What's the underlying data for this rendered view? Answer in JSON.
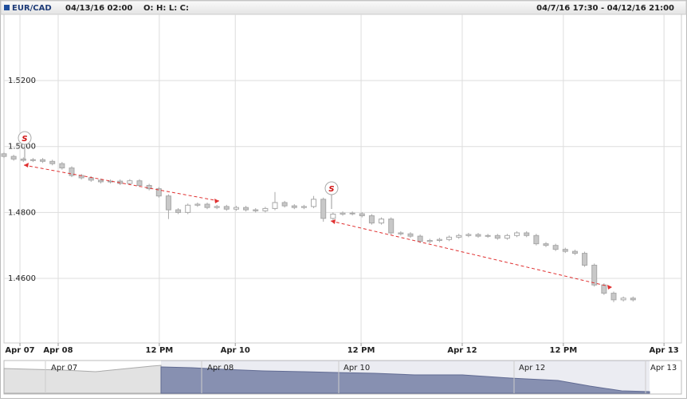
{
  "header": {
    "symbol": "EUR/CAD",
    "time": "04/13/16 02:00",
    "ohlc": "O: H: L: C:",
    "range": "04/7/16 17:30 - 04/12/16 21:00"
  },
  "chart_data": {
    "type": "candlestick",
    "x": [
      0,
      2,
      4,
      6,
      8,
      10,
      12,
      14,
      16,
      18,
      20,
      22,
      24,
      26,
      28,
      30,
      32,
      34,
      36,
      38,
      40,
      42,
      44,
      46,
      48,
      50,
      52,
      54,
      56,
      58,
      60,
      62,
      64,
      66,
      68,
      70,
      72,
      74,
      76,
      78,
      80,
      82,
      84,
      86,
      88,
      90,
      92,
      94,
      96,
      98,
      100,
      102,
      104,
      106,
      108,
      110,
      112,
      114,
      116,
      118,
      120,
      122,
      124,
      126,
      128,
      130
    ],
    "open": [
      1.4978,
      1.497,
      1.4962,
      1.4958,
      1.496,
      1.4955,
      1.4948,
      1.4935,
      1.4912,
      1.4905,
      1.4898,
      1.4893,
      1.4895,
      1.4888,
      1.4896,
      1.4882,
      1.4872,
      1.485,
      1.4808,
      1.48,
      1.4822,
      1.4825,
      1.4815,
      1.4818,
      1.481,
      1.4815,
      1.4808,
      1.4805,
      1.4812,
      1.483,
      1.482,
      1.4815,
      1.4818,
      1.484,
      1.4782,
      1.4795,
      1.4798,
      1.4796,
      1.479,
      1.4768,
      1.478,
      1.4738,
      1.4735,
      1.4728,
      1.4712,
      1.4715,
      1.4718,
      1.4725,
      1.473,
      1.4733,
      1.4728,
      1.473,
      1.4722,
      1.473,
      1.4738,
      1.473,
      1.4705,
      1.47,
      1.4688,
      1.4682,
      1.4676,
      1.464,
      1.458,
      1.4555,
      1.4535,
      1.454
    ],
    "high": [
      1.4983,
      1.4975,
      1.4967,
      1.4965,
      1.4965,
      1.496,
      1.4953,
      1.494,
      1.4917,
      1.491,
      1.4903,
      1.49,
      1.49,
      1.4901,
      1.4901,
      1.4887,
      1.4877,
      1.4855,
      1.4813,
      1.4827,
      1.483,
      1.483,
      1.4823,
      1.4823,
      1.482,
      1.482,
      1.4813,
      1.4817,
      1.4862,
      1.4835,
      1.4825,
      1.4823,
      1.485,
      1.4845,
      1.48,
      1.4803,
      1.4803,
      1.4801,
      1.4795,
      1.4785,
      1.4785,
      1.4743,
      1.474,
      1.4733,
      1.472,
      1.4723,
      1.473,
      1.4735,
      1.4738,
      1.4738,
      1.4735,
      1.4735,
      1.4735,
      1.4743,
      1.4743,
      1.4735,
      1.471,
      1.4705,
      1.4693,
      1.4687,
      1.4681,
      1.4645,
      1.4585,
      1.456,
      1.4545,
      1.4545
    ],
    "low": [
      1.4965,
      1.4957,
      1.4953,
      1.4953,
      1.495,
      1.4943,
      1.493,
      1.4907,
      1.49,
      1.4893,
      1.4888,
      1.4888,
      1.4883,
      1.4883,
      1.4877,
      1.4867,
      1.4845,
      1.478,
      1.4795,
      1.4795,
      1.4817,
      1.481,
      1.481,
      1.4805,
      1.4805,
      1.4803,
      1.48,
      1.48,
      1.4807,
      1.4815,
      1.481,
      1.481,
      1.4813,
      1.4772,
      1.4777,
      1.479,
      1.4791,
      1.4785,
      1.4763,
      1.4763,
      1.4733,
      1.473,
      1.4723,
      1.4707,
      1.4707,
      1.471,
      1.4713,
      1.472,
      1.4725,
      1.4723,
      1.4723,
      1.4717,
      1.4717,
      1.4725,
      1.4725,
      1.47,
      1.4695,
      1.4683,
      1.4677,
      1.4671,
      1.4635,
      1.4575,
      1.455,
      1.4528,
      1.453,
      1.453
    ],
    "close": [
      1.497,
      1.4962,
      1.4958,
      1.496,
      1.4955,
      1.4948,
      1.4935,
      1.4912,
      1.4905,
      1.4898,
      1.4893,
      1.4895,
      1.4888,
      1.4896,
      1.4882,
      1.4872,
      1.485,
      1.4808,
      1.48,
      1.4822,
      1.4825,
      1.4815,
      1.4818,
      1.481,
      1.4815,
      1.4808,
      1.4805,
      1.4812,
      1.483,
      1.482,
      1.4815,
      1.4818,
      1.484,
      1.4782,
      1.4795,
      1.4798,
      1.4796,
      1.479,
      1.4768,
      1.478,
      1.4738,
      1.4735,
      1.4728,
      1.4712,
      1.4715,
      1.4718,
      1.4725,
      1.473,
      1.4733,
      1.4728,
      1.473,
      1.4722,
      1.473,
      1.4738,
      1.473,
      1.4705,
      1.47,
      1.4688,
      1.4682,
      1.4676,
      1.464,
      1.458,
      1.4555,
      1.4535,
      1.454,
      1.4535
    ],
    "xlim": [
      0,
      140
    ],
    "xticks": [
      {
        "value": 3.3,
        "label": "Apr 07"
      },
      {
        "value": 11.2,
        "label": "Apr 08"
      },
      {
        "value": 32.1,
        "label": "12 PM"
      },
      {
        "value": 47.8,
        "label": "Apr 10"
      },
      {
        "value": 73.8,
        "label": "12 PM"
      },
      {
        "value": 94.7,
        "label": "Apr 12"
      },
      {
        "value": 115.6,
        "label": "12 PM"
      },
      {
        "value": 136.4,
        "label": "Apr 13"
      }
    ],
    "ylim": [
      1.4404,
      1.5401
    ],
    "yticks": [
      {
        "value": 1.46,
        "label": "1.4600"
      },
      {
        "value": 1.48,
        "label": "1.4800"
      },
      {
        "value": 1.5,
        "label": "1.5000"
      },
      {
        "value": 1.52,
        "label": "1.5200"
      }
    ],
    "grid": true,
    "up_color": "#ffffff",
    "down_color": "#c8c8c8",
    "edge_color": "#a8a8a8",
    "markers": [
      "S",
      "S"
    ]
  },
  "navigator": {
    "labels": [
      "Apr 07",
      "Apr 08",
      "Apr 10",
      "Apr 12",
      "Apr 13"
    ]
  }
}
